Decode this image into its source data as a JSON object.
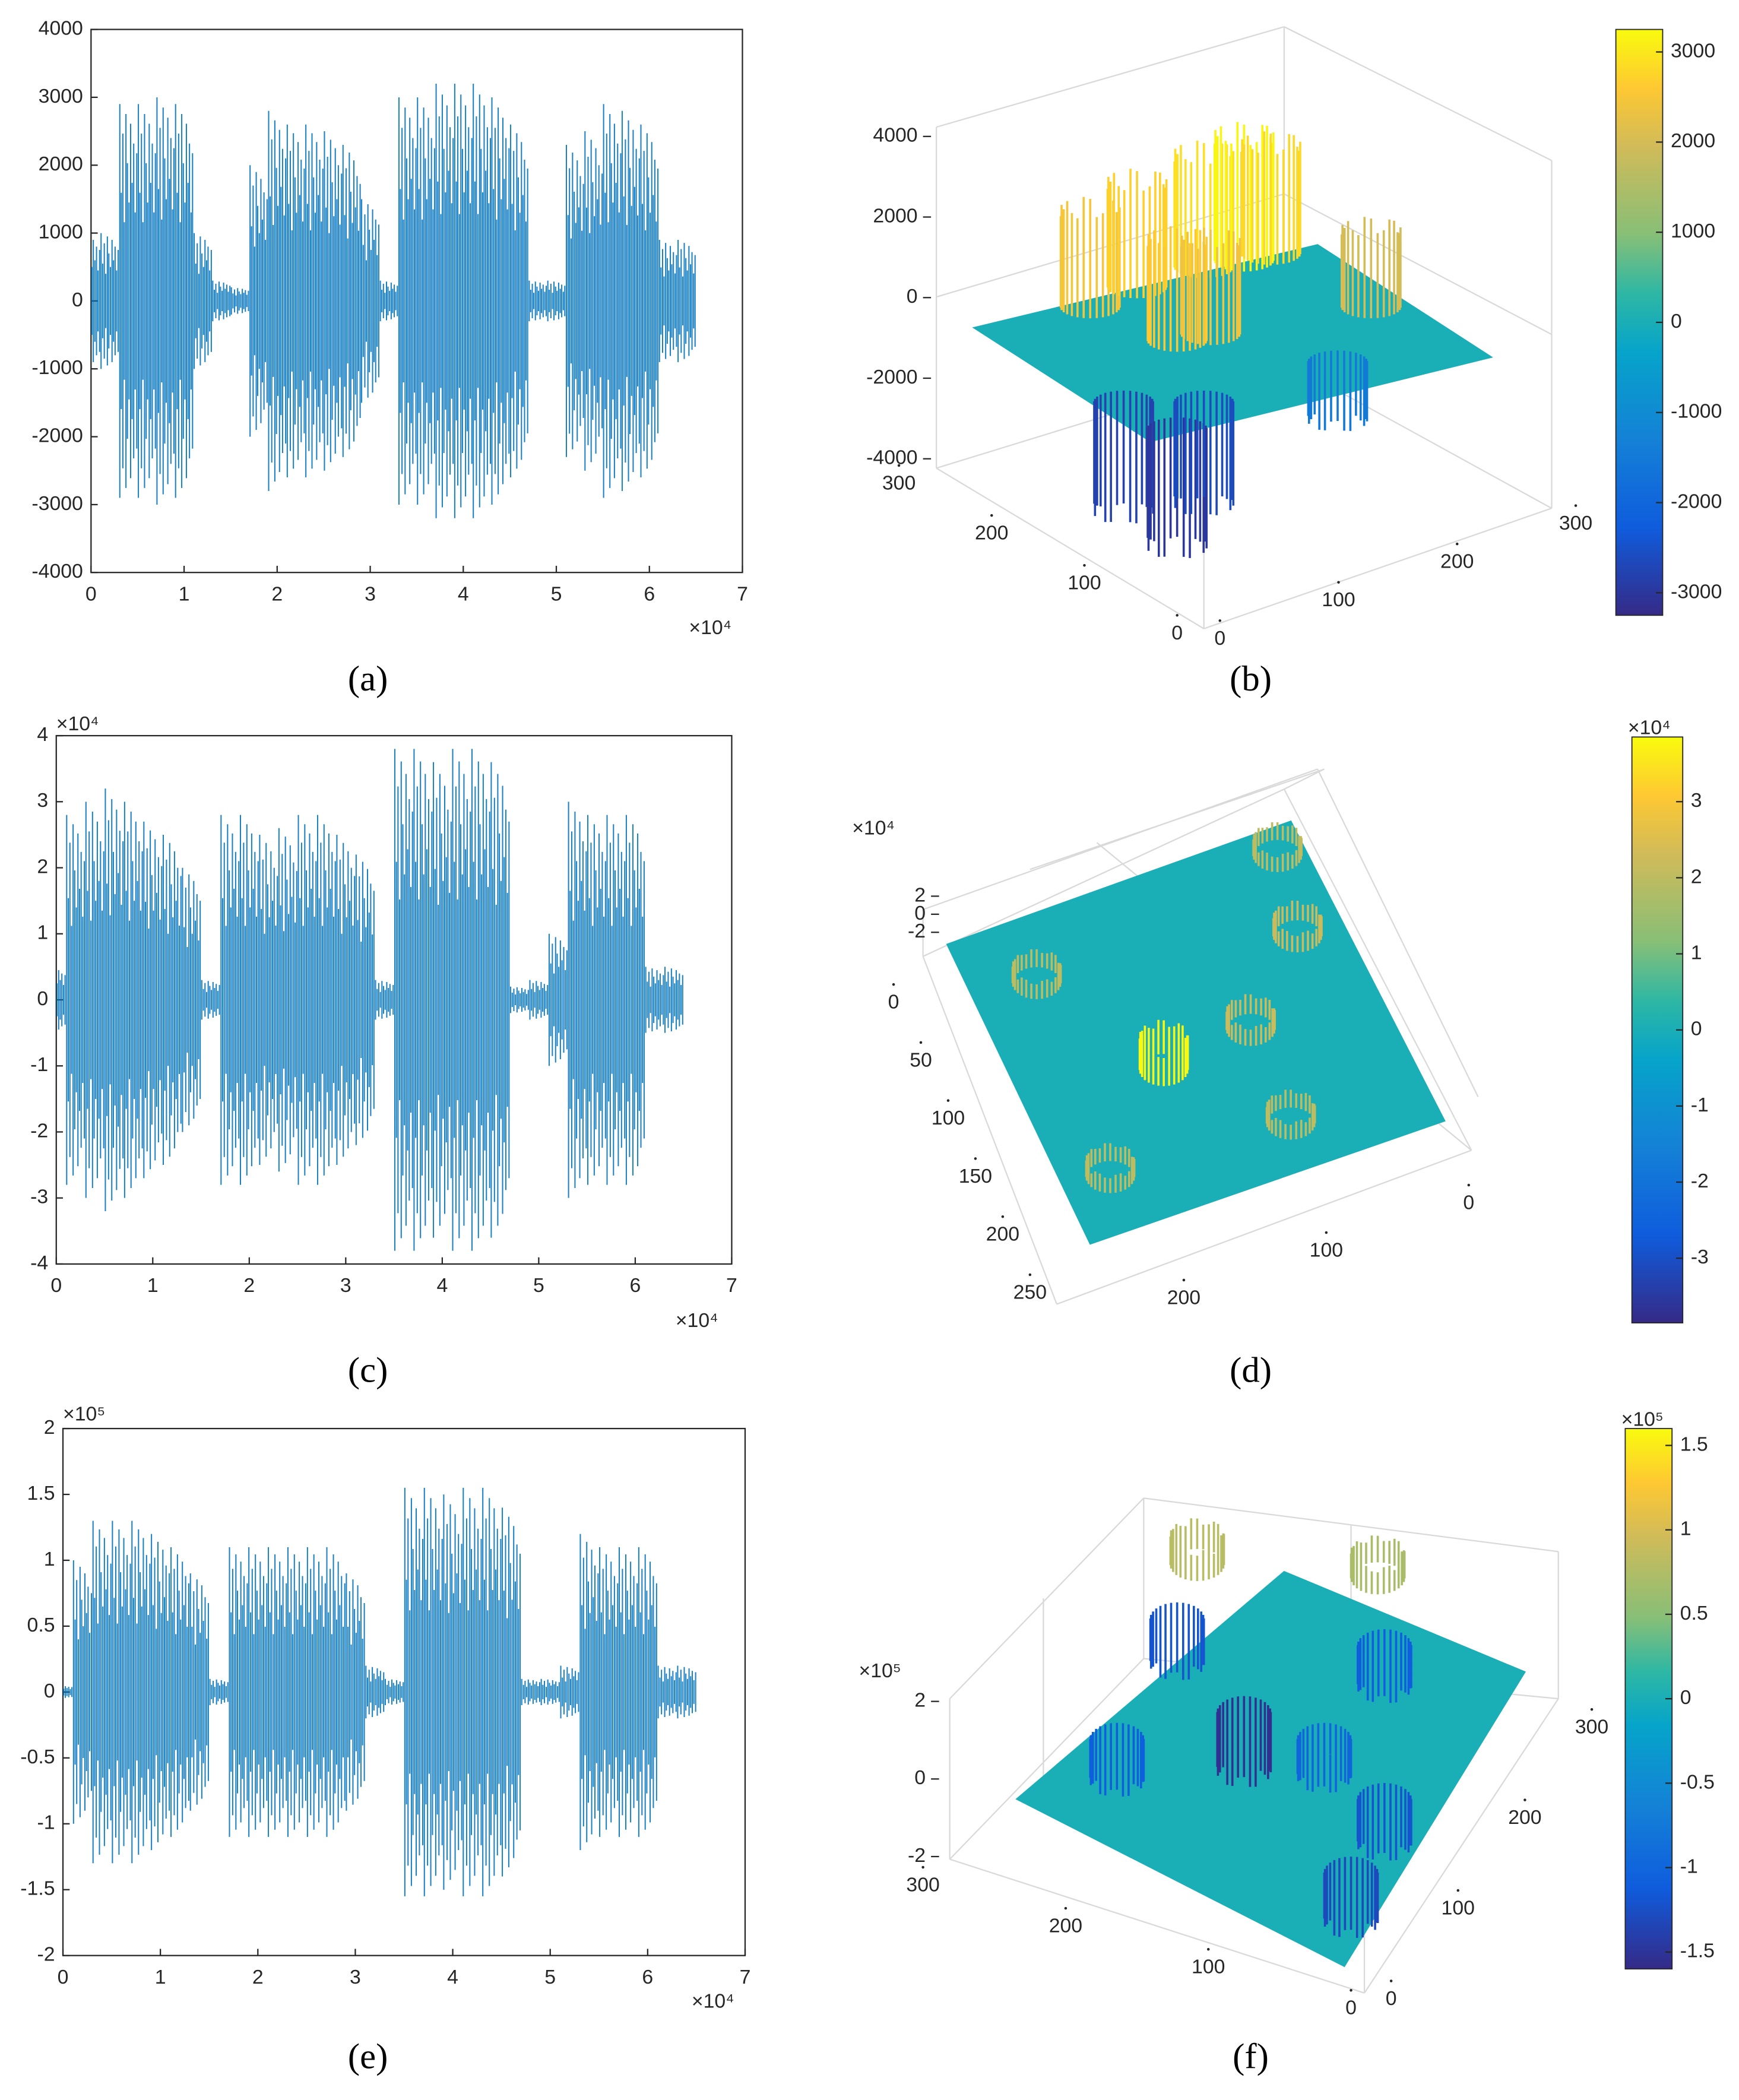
{
  "chart_data": [
    {
      "type": "waveform",
      "caption": "(a)",
      "x": [
        0,
        2000,
        4000,
        6000,
        8000,
        10000,
        12000,
        14000,
        16000,
        18000,
        20000,
        22000,
        24000,
        26000,
        28000,
        30000,
        32000,
        34000,
        36000,
        38000,
        40000,
        42000,
        44000,
        46000,
        48000,
        50000,
        52000,
        54000,
        56000,
        58000,
        60000,
        62000,
        64000
      ],
      "values": [
        1000,
        1000,
        2900,
        2900,
        3000,
        2900,
        1000,
        300,
        200,
        2000,
        2800,
        2600,
        2600,
        2500,
        2300,
        1500,
        300,
        3000,
        3000,
        3200,
        3200,
        3200,
        3000,
        2600,
        300,
        300,
        2300,
        2500,
        2900,
        2800,
        2600,
        900,
        900
      ],
      "color": "#0072bd",
      "xlim": [
        0,
        70000
      ],
      "xticks": [
        0,
        {
          "value": 10000,
          "label": "1"
        },
        {
          "value": 20000,
          "label": "2"
        },
        {
          "value": 30000,
          "label": "3"
        },
        {
          "value": 40000,
          "label": "4"
        },
        {
          "value": 50000,
          "label": "5"
        },
        {
          "value": 60000,
          "label": "6"
        },
        {
          "value": 70000,
          "label": "7"
        }
      ],
      "x_exponent": "×10⁴",
      "ylim": [
        -4000,
        4000
      ],
      "yticks": [
        -4000,
        -3000,
        -2000,
        -1000,
        0,
        1000,
        2000,
        3000,
        4000
      ]
    },
    {
      "type": "surface",
      "caption": "(b)",
      "values": [
        2500,
        2700,
        2900,
        3200,
        2800,
        2600,
        2400,
        2000,
        -2800,
        -3000,
        -2600,
        -1500
      ],
      "zlim": [
        -4000,
        4000
      ],
      "zticks": [
        -4000,
        -2000,
        0,
        2000,
        4000
      ],
      "xlim": [
        0,
        300
      ],
      "xticks": [
        0,
        100,
        200,
        300
      ],
      "ylim": [
        0,
        300
      ],
      "yticks": [
        0,
        100,
        200,
        300
      ],
      "clim": [
        -3250,
        3250
      ],
      "cticks": [
        -3000,
        -2000,
        -1000,
        0,
        1000,
        2000,
        3000
      ]
    },
    {
      "type": "waveform",
      "caption": "(c)",
      "x": [
        0,
        2000,
        4000,
        6000,
        8000,
        10000,
        12000,
        14000,
        16000,
        18000,
        20000,
        22000,
        24000,
        26000,
        28000,
        30000,
        32000,
        34000,
        36000,
        38000,
        40000,
        42000,
        44000,
        46000,
        48000,
        50000,
        52000,
        54000,
        56000,
        58000,
        60000,
        62000,
        64000
      ],
      "values": [
        5000,
        28000,
        30000,
        32000,
        30000,
        27000,
        25000,
        20000,
        3000,
        28000,
        28000,
        25000,
        26000,
        28000,
        28000,
        25000,
        22000,
        3000,
        38000,
        38000,
        36000,
        38000,
        38000,
        36000,
        2000,
        3000,
        10000,
        30000,
        28000,
        28000,
        28000,
        5000,
        5000
      ],
      "color": "#0072bd",
      "xlim": [
        0,
        70000
      ],
      "xticks": [
        0,
        {
          "value": 10000,
          "label": "1"
        },
        {
          "value": 20000,
          "label": "2"
        },
        {
          "value": 30000,
          "label": "3"
        },
        {
          "value": 40000,
          "label": "4"
        },
        {
          "value": 50000,
          "label": "5"
        },
        {
          "value": 60000,
          "label": "6"
        },
        {
          "value": 70000,
          "label": "7"
        }
      ],
      "x_exponent": "×10⁴",
      "ylim": [
        -40000,
        40000
      ],
      "yticks": [
        {
          "value": -40000,
          "label": "-4"
        },
        {
          "value": -30000,
          "label": "-3"
        },
        {
          "value": -20000,
          "label": "-2"
        },
        {
          "value": -10000,
          "label": "-1"
        },
        0,
        {
          "value": 10000,
          "label": "1"
        },
        {
          "value": 20000,
          "label": "2"
        },
        {
          "value": 30000,
          "label": "3"
        },
        {
          "value": 40000,
          "label": "4"
        }
      ],
      "y_exponent": "×10⁴"
    },
    {
      "type": "surface",
      "caption": "(d)",
      "values": [
        20000,
        22000,
        20000,
        38000,
        22000,
        20000,
        20000
      ],
      "zlim": [
        -20000,
        20000
      ],
      "zticks": [
        {
          "value": -20000,
          "label": "-2"
        },
        0,
        {
          "value": 20000,
          "label": "2"
        }
      ],
      "z_exponent": "×10⁴",
      "xlim": [
        0,
        200
      ],
      "xticks": [
        0,
        100,
        200
      ],
      "ylim": [
        0,
        250
      ],
      "yticks": [
        0,
        50,
        100,
        150,
        200,
        250
      ],
      "clim": [
        -38500,
        38500
      ],
      "cticks": [
        {
          "value": -30000,
          "label": "-3"
        },
        {
          "value": -20000,
          "label": "-2"
        },
        {
          "value": -10000,
          "label": "-1"
        },
        0,
        {
          "value": 10000,
          "label": "1"
        },
        {
          "value": 20000,
          "label": "2"
        },
        {
          "value": 30000,
          "label": "3"
        }
      ],
      "c_exponent": "×10⁴"
    },
    {
      "type": "waveform",
      "caption": "(e)",
      "x": [
        0,
        2000,
        4000,
        6000,
        8000,
        10000,
        12000,
        14000,
        16000,
        18000,
        20000,
        22000,
        24000,
        26000,
        28000,
        30000,
        32000,
        34000,
        36000,
        38000,
        40000,
        42000,
        44000,
        46000,
        48000,
        50000,
        52000,
        54000,
        56000,
        58000,
        60000,
        62000,
        64000
      ],
      "values": [
        5000,
        100000,
        130000,
        130000,
        130000,
        120000,
        110000,
        90000,
        10000,
        110000,
        110000,
        110000,
        110000,
        110000,
        110000,
        90000,
        20000,
        10000,
        155000,
        155000,
        150000,
        155000,
        155000,
        140000,
        10000,
        10000,
        20000,
        120000,
        110000,
        110000,
        110000,
        20000,
        20000
      ],
      "color": "#0072bd",
      "xlim": [
        0,
        70000
      ],
      "xticks": [
        0,
        {
          "value": 10000,
          "label": "1"
        },
        {
          "value": 20000,
          "label": "2"
        },
        {
          "value": 30000,
          "label": "3"
        },
        {
          "value": 40000,
          "label": "4"
        },
        {
          "value": 50000,
          "label": "5"
        },
        {
          "value": 60000,
          "label": "6"
        },
        {
          "value": 70000,
          "label": "7"
        }
      ],
      "x_exponent": "×10⁴",
      "ylim": [
        -200000,
        200000
      ],
      "yticks": [
        {
          "value": -200000,
          "label": "-2"
        },
        {
          "value": -150000,
          "label": "-1.5"
        },
        {
          "value": -100000,
          "label": "-1"
        },
        {
          "value": -50000,
          "label": "-0.5"
        },
        0,
        {
          "value": 50000,
          "label": "0.5"
        },
        {
          "value": 100000,
          "label": "1"
        },
        {
          "value": 150000,
          "label": "1.5"
        },
        {
          "value": 200000,
          "label": "2"
        }
      ],
      "y_exponent": "×10⁵"
    },
    {
      "type": "surface",
      "caption": "(f)",
      "values": [
        -120000,
        -110000,
        -155000,
        -110000,
        -100000,
        -120000,
        -130000,
        80000,
        70000
      ],
      "zlim": [
        -200000,
        200000
      ],
      "zticks": [
        {
          "value": -200000,
          "label": "-2"
        },
        0,
        {
          "value": 200000,
          "label": "2"
        }
      ],
      "z_exponent": "×10⁵",
      "xlim": [
        0,
        300
      ],
      "xticks": [
        0,
        100,
        200,
        300
      ],
      "ylim": [
        0,
        300
      ],
      "yticks": [
        0,
        100,
        200,
        300
      ],
      "clim": [
        -160000,
        160000
      ],
      "cticks": [
        {
          "value": -150000,
          "label": "-1.5"
        },
        {
          "value": -100000,
          "label": "-1"
        },
        {
          "value": -50000,
          "label": "-0.5"
        },
        0,
        {
          "value": 50000,
          "label": "0.5"
        },
        {
          "value": 100000,
          "label": "1"
        },
        {
          "value": 150000,
          "label": "1.5"
        }
      ],
      "c_exponent": "×10⁵"
    }
  ]
}
